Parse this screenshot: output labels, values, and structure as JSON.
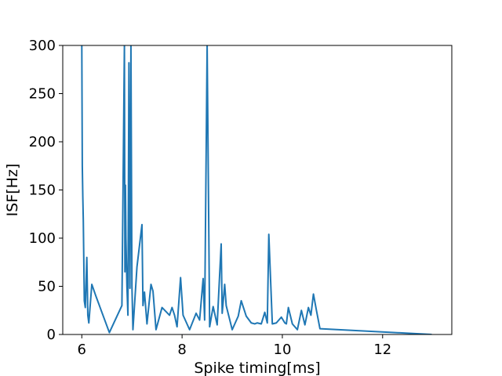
{
  "chart_data": {
    "type": "line",
    "title": "",
    "xlabel": "Spike timing[ms]",
    "ylabel": "ISF[Hz]",
    "xlim": [
      5.62,
      13.38
    ],
    "ylim": [
      0,
      300
    ],
    "xticks": [
      6,
      8,
      10,
      12
    ],
    "yticks": [
      0,
      50,
      100,
      150,
      200,
      250,
      300
    ],
    "grid": false,
    "legend": "none",
    "series_color": "#1f77b4",
    "series": [
      {
        "x": [
          6.0,
          6.01,
          6.02,
          6.03,
          6.05,
          6.07,
          6.1,
          6.12,
          6.14,
          6.2,
          6.28,
          6.55,
          6.8,
          6.85,
          6.86,
          6.87,
          6.88,
          6.9,
          6.92,
          6.94,
          6.96,
          6.97,
          6.98,
          7.0,
          7.02,
          7.1,
          7.2,
          7.22,
          7.25,
          7.3,
          7.38,
          7.42,
          7.48,
          7.6,
          7.75,
          7.8,
          7.85,
          7.9,
          7.97,
          8.02,
          8.15,
          8.28,
          8.35,
          8.42,
          8.45,
          8.5,
          8.55,
          8.62,
          8.7,
          8.78,
          8.8,
          8.85,
          8.88,
          9.0,
          9.12,
          9.18,
          9.28,
          9.38,
          9.45,
          9.5,
          9.58,
          9.65,
          9.7,
          9.73,
          9.8,
          9.88,
          9.98,
          10.05,
          10.08,
          10.12,
          10.2,
          10.3,
          10.38,
          10.45,
          10.52,
          10.57,
          10.62,
          10.68,
          10.75,
          12.98
        ],
        "y": [
          300,
          175,
          143,
          118,
          35,
          28,
          80,
          20,
          12,
          52,
          40,
          2,
          30,
          300,
          65,
          155,
          100,
          50,
          20,
          282,
          48,
          150,
          300,
          50,
          5,
          70,
          114,
          30,
          44,
          11,
          52,
          45,
          5,
          28,
          20,
          28,
          20,
          8,
          59,
          20,
          5,
          22,
          15,
          58,
          15,
          300,
          8,
          29,
          10,
          94,
          22,
          52,
          30,
          5,
          19,
          35,
          19,
          12,
          11,
          12,
          11,
          23,
          12,
          104,
          11,
          12,
          18,
          12,
          11,
          28,
          11,
          5,
          25,
          10,
          28,
          20,
          42,
          25,
          6,
          0
        ]
      }
    ]
  }
}
